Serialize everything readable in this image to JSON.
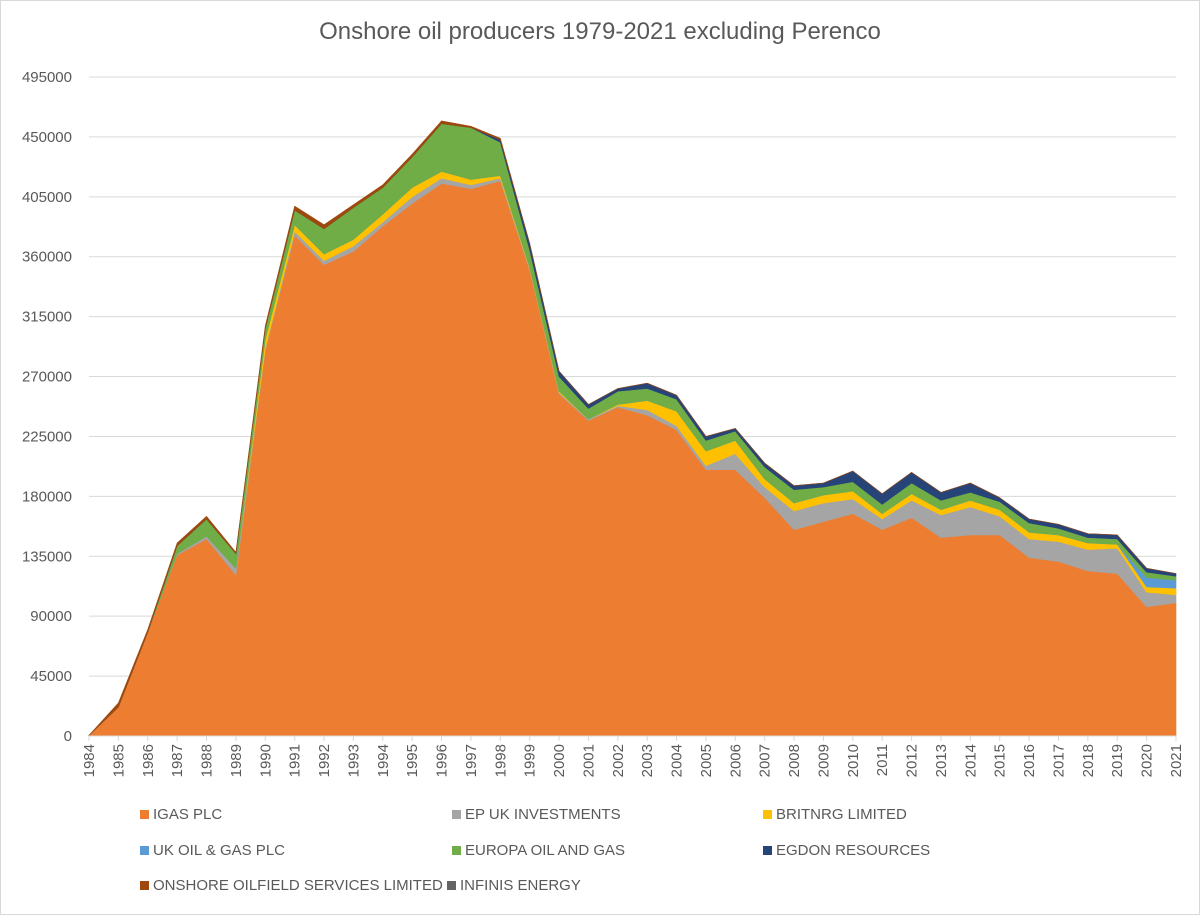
{
  "chart_data": {
    "type": "area",
    "stacked": true,
    "title": "Onshore oil producers 1979-2021 excluding Perenco",
    "xlabel": "",
    "ylabel": "",
    "ylim": [
      0,
      495000
    ],
    "yticks": [
      0,
      45000,
      90000,
      135000,
      180000,
      225000,
      270000,
      315000,
      360000,
      405000,
      450000,
      495000
    ],
    "grid": true,
    "legend_position": "bottom",
    "categories": [
      "1984",
      "1985",
      "1986",
      "1987",
      "1988",
      "1989",
      "1990",
      "1991",
      "1992",
      "1993",
      "1994",
      "1995",
      "1996",
      "1997",
      "1998",
      "1999",
      "2000",
      "2001",
      "2002",
      "2003",
      "2004",
      "2005",
      "2006",
      "2007",
      "2008",
      "2009",
      "2010",
      "2011",
      "2012",
      "2013",
      "2014",
      "2015",
      "2016",
      "2017",
      "2018",
      "2019",
      "2020",
      "2021"
    ],
    "series": [
      {
        "name": "IGAS PLC",
        "color": "#ED7D31",
        "values": [
          500,
          21800,
          78000,
          136000,
          148000,
          121000,
          290000,
          376000,
          354000,
          364000,
          383000,
          400000,
          415000,
          411000,
          417000,
          350000,
          257000,
          237000,
          247000,
          241000,
          230000,
          200000,
          200000,
          179000,
          155000,
          161000,
          167000,
          155000,
          164000,
          149000,
          151000,
          151000,
          134000,
          131000,
          124000,
          122000,
          97000,
          100000
        ]
      },
      {
        "name": "EP UK INVESTMENTS",
        "color": "#A5A5A5",
        "values": [
          0,
          0,
          0,
          1000,
          2000,
          5000,
          1000,
          3000,
          3000,
          4000,
          3000,
          5000,
          4000,
          3000,
          2000,
          1000,
          1000,
          1000,
          1000,
          4000,
          3000,
          3000,
          12000,
          8000,
          14000,
          14000,
          11000,
          8000,
          13000,
          17000,
          21000,
          14000,
          14000,
          15000,
          16000,
          19000,
          11000,
          6000
        ]
      },
      {
        "name": "BRITNRG LIMITED",
        "color": "#FFC000",
        "values": [
          0,
          0,
          0,
          0,
          0,
          0,
          7000,
          5000,
          5000,
          5000,
          6000,
          7000,
          5000,
          4000,
          2000,
          1000,
          1000,
          0,
          1000,
          7000,
          11000,
          11000,
          10000,
          6000,
          6000,
          6000,
          6000,
          4000,
          5000,
          4000,
          5000,
          5000,
          5000,
          5000,
          5000,
          3000,
          4000,
          5000
        ]
      },
      {
        "name": "UK OIL & GAS PLC",
        "color": "#5B9BD5",
        "values": [
          0,
          0,
          0,
          0,
          0,
          0,
          0,
          0,
          0,
          0,
          0,
          0,
          0,
          0,
          0,
          0,
          0,
          0,
          0,
          0,
          0,
          0,
          0,
          0,
          0,
          0,
          0,
          0,
          0,
          0,
          0,
          0,
          0,
          0,
          0,
          0,
          7000,
          6000
        ]
      },
      {
        "name": "EUROPA OIL AND GAS",
        "color": "#70AD47",
        "values": [
          0,
          0,
          0,
          6000,
          13000,
          11000,
          8000,
          11000,
          19000,
          24000,
          20000,
          23000,
          36000,
          39000,
          25000,
          13000,
          11000,
          8000,
          10000,
          9000,
          9000,
          8000,
          7000,
          9000,
          10000,
          6000,
          7000,
          7000,
          8000,
          7000,
          6000,
          6000,
          7000,
          5000,
          4000,
          4000,
          4000,
          3000
        ]
      },
      {
        "name": "EGDON RESOURCES",
        "color": "#264478",
        "values": [
          0,
          0,
          0,
          0,
          0,
          0,
          0,
          0,
          0,
          0,
          0,
          0,
          0,
          0,
          2000,
          5000,
          4000,
          3000,
          2000,
          4000,
          3000,
          3000,
          2000,
          3000,
          3000,
          3000,
          8000,
          8000,
          8000,
          6000,
          7000,
          3000,
          3000,
          3000,
          3000,
          3000,
          3000,
          2000
        ]
      },
      {
        "name": "ONSHORE OILFIELD SERVICES LIMITED",
        "color": "#9E480E",
        "values": [
          0,
          3000,
          2000,
          2000,
          2000,
          1000,
          2000,
          3000,
          3000,
          2000,
          2000,
          2000,
          2000,
          1000,
          1000,
          0,
          0,
          0,
          0,
          0,
          0,
          0,
          0,
          0,
          0,
          0,
          0,
          0,
          0,
          0,
          0,
          0,
          0,
          0,
          0,
          0,
          0,
          0
        ]
      },
      {
        "name": "INFINIS ENERGY",
        "color": "#636363",
        "values": [
          0,
          0,
          0,
          0,
          0,
          0,
          0,
          0,
          0,
          0,
          0,
          0,
          0,
          0,
          0,
          0,
          0,
          0,
          0,
          0,
          0,
          0,
          0,
          0,
          0,
          0,
          0,
          0,
          0,
          0,
          0,
          0,
          0,
          0,
          0,
          0,
          0,
          0
        ]
      }
    ]
  },
  "legend": [
    {
      "label": "IGAS PLC",
      "color": "#ED7D31"
    },
    {
      "label": "EP UK INVESTMENTS",
      "color": "#A5A5A5"
    },
    {
      "label": "BRITNRG LIMITED",
      "color": "#FFC000"
    },
    {
      "label": "UK OIL & GAS PLC",
      "color": "#5B9BD5"
    },
    {
      "label": "EUROPA OIL AND GAS",
      "color": "#70AD47"
    },
    {
      "label": "EGDON RESOURCES",
      "color": "#264478"
    },
    {
      "label": "ONSHORE OILFIELD SERVICES LIMITED",
      "color": "#9E480E"
    },
    {
      "label": "INFINIS ENERGY",
      "color": "#636363"
    }
  ]
}
